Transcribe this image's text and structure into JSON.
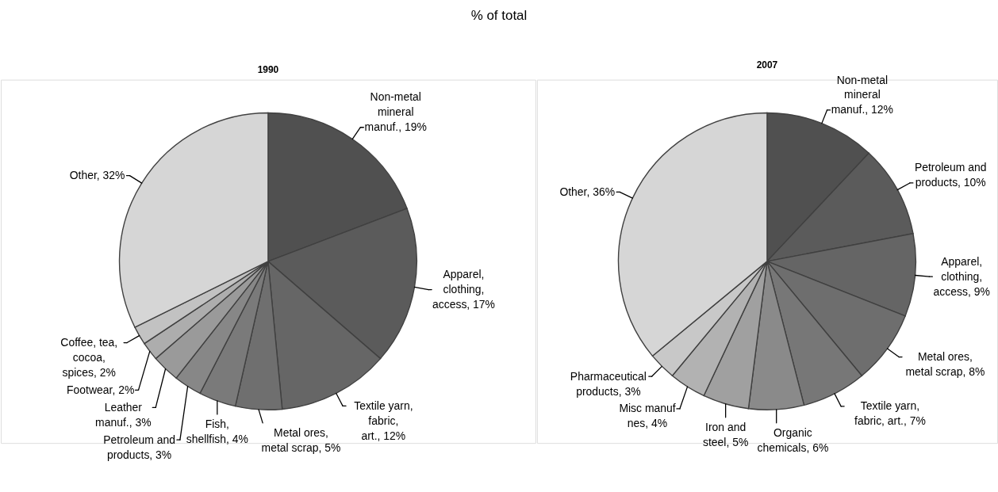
{
  "chart_data": [
    {
      "type": "pie",
      "title": "% of total",
      "subtitle": "1990",
      "categories": [
        "Non-metal mineral manuf.",
        "Apparel, clothing, access",
        "Textile yarn, fabric, art.",
        "Metal ores, metal scrap",
        "Fish, shellfish",
        "Petroleum and products",
        "Leather manuf.",
        "Footwear",
        "Coffee, tea, cocoa, spices",
        "Other"
      ],
      "values": [
        19,
        17,
        12,
        5,
        4,
        3,
        3,
        2,
        2,
        32
      ],
      "value_labels": [
        "19%",
        "17%",
        "12%",
        "5%",
        "4%",
        "3%",
        "3%",
        "2%",
        "2%",
        "32%"
      ],
      "colors": [
        "#505050",
        "#5b5b5b",
        "#666666",
        "#6f6f6f",
        "#7a7a7a",
        "#878787",
        "#9a9a9a",
        "#adadad",
        "#c2c2c2",
        "#d6d6d6"
      ]
    },
    {
      "type": "pie",
      "subtitle": "2007",
      "categories": [
        "Non-metal mineral manuf.",
        "Petroleum and products",
        "Apparel, clothing, access",
        "Metal ores, metal scrap",
        "Textile yarn, fabric, art.",
        "Organic chemicals",
        "Iron and steel",
        "Misc manuf nes",
        "Pharmaceutical products",
        "Other"
      ],
      "values": [
        12,
        10,
        9,
        8,
        7,
        6,
        5,
        4,
        3,
        36
      ],
      "value_labels": [
        "12%",
        "10%",
        "9%",
        "8%",
        "7%",
        "6%",
        "5%",
        "4%",
        "3%",
        "36%"
      ],
      "colors": [
        "#505050",
        "#5b5b5b",
        "#656565",
        "#6e6e6e",
        "#777777",
        "#8a8a8a",
        "#a0a0a0",
        "#b2b2b2",
        "#c8c8c8",
        "#d6d6d6"
      ]
    }
  ]
}
